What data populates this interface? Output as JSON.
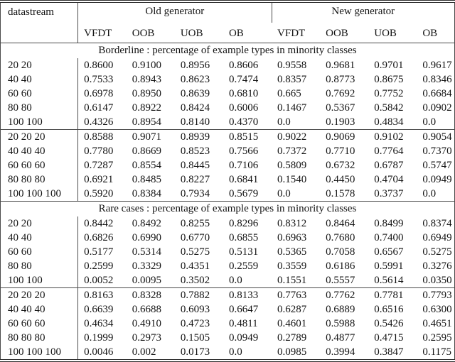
{
  "table": {
    "header": {
      "datastream": "datastream",
      "old_generator": "Old generator",
      "new_generator": "New generator",
      "sub_headers": [
        "VFDT",
        "OOB",
        "UOB",
        "OB",
        "VFDT",
        "OOB",
        "UOB",
        "OB"
      ]
    },
    "sections": [
      {
        "title": "Borderline : percentage of example types in minority classes",
        "blocks": [
          {
            "rows": [
              {
                "datastream": "20 20",
                "values": [
                  "0.8600",
                  "0.9100",
                  "0.8956",
                  "0.8606",
                  "0.9558",
                  "0.9681",
                  "0.9701",
                  "0.9617"
                ]
              },
              {
                "datastream": "40 40",
                "values": [
                  "0.7533",
                  "0.8943",
                  "0.8623",
                  "0.7474",
                  "0.8357",
                  "0.8773",
                  "0.8675",
                  "0.8346"
                ]
              },
              {
                "datastream": "60 60",
                "values": [
                  "0.6978",
                  "0.8950",
                  "0.8639",
                  "0.6810",
                  "0.665",
                  "0.7692",
                  "0.7752",
                  "0.6684"
                ]
              },
              {
                "datastream": "80 80",
                "values": [
                  "0.6147",
                  "0.8922",
                  "0.8424",
                  "0.6006",
                  "0.1467",
                  "0.5367",
                  "0.5842",
                  "0.0902"
                ]
              },
              {
                "datastream": "100 100",
                "values": [
                  "0.4326",
                  "0.8954",
                  "0.8140",
                  "0.4370",
                  "0.0",
                  "0.1903",
                  "0.4834",
                  "0.0"
                ]
              }
            ]
          },
          {
            "rows": [
              {
                "datastream": "20 20 20",
                "values": [
                  "0.8588",
                  "0.9071",
                  "0.8939",
                  "0.8515",
                  "0.9022",
                  "0.9069",
                  "0.9102",
                  "0.9054"
                ]
              },
              {
                "datastream": "40 40 40",
                "values": [
                  "0.7780",
                  "0.8669",
                  "0.8523",
                  "0.7566",
                  "0.7372",
                  "0.7710",
                  "0.7764",
                  "0.7370"
                ]
              },
              {
                "datastream": "60 60 60",
                "values": [
                  "0.7287",
                  "0.8554",
                  "0.8445",
                  "0.7106",
                  "0.5809",
                  "0.6732",
                  "0.6787",
                  "0.5747"
                ]
              },
              {
                "datastream": "80 80 80",
                "values": [
                  "0.6921",
                  "0.8485",
                  "0.8227",
                  "0.6841",
                  "0.1540",
                  "0.4450",
                  "0.4704",
                  "0.0949"
                ]
              },
              {
                "datastream": "100 100 100",
                "values": [
                  "0.5920",
                  "0.8384",
                  "0.7934",
                  "0.5679",
                  "0.0",
                  "0.1578",
                  "0.3737",
                  "0.0"
                ]
              }
            ]
          }
        ]
      },
      {
        "title": "Rare cases : percentage of example types in minority classes",
        "blocks": [
          {
            "rows": [
              {
                "datastream": "20 20",
                "values": [
                  "0.8442",
                  "0.8492",
                  "0.8255",
                  "0.8296",
                  "0.8312",
                  "0.8464",
                  "0.8499",
                  "0.8374"
                ]
              },
              {
                "datastream": "40 40",
                "values": [
                  "0.6826",
                  "0.6990",
                  "0.6770",
                  "0.6855",
                  "0.6963",
                  "0.7680",
                  "0.7400",
                  "0.6949"
                ]
              },
              {
                "datastream": "60 60",
                "values": [
                  "0.5177",
                  "0.5314",
                  "0.5275",
                  "0.5131",
                  "0.5365",
                  "0.7058",
                  "0.6567",
                  "0.5275"
                ]
              },
              {
                "datastream": "80 80",
                "values": [
                  "0.2599",
                  "0.3329",
                  "0.4351",
                  "0.2559",
                  "0.3559",
                  "0.6186",
                  "0.5991",
                  "0.3276"
                ]
              },
              {
                "datastream": "100 100",
                "values": [
                  "0.0052",
                  "0.0095",
                  "0.3502",
                  "0.0",
                  "0.1551",
                  "0.5557",
                  "0.5614",
                  "0.0350"
                ]
              }
            ]
          },
          {
            "rows": [
              {
                "datastream": "20 20 20",
                "values": [
                  "0.8163",
                  "0.8328",
                  "0.7882",
                  "0.8133",
                  "0.7763",
                  "0.7762",
                  "0.7781",
                  "0.7793"
                ]
              },
              {
                "datastream": "40 40 40",
                "values": [
                  "0.6639",
                  "0.6688",
                  "0.6093",
                  "0.6647",
                  "0.6287",
                  "0.6889",
                  "0.6516",
                  "0.6300"
                ]
              },
              {
                "datastream": "60 60 60",
                "values": [
                  "0.4634",
                  "0.4910",
                  "0.4723",
                  "0.4811",
                  "0.4601",
                  "0.5988",
                  "0.5426",
                  "0.4651"
                ]
              },
              {
                "datastream": "80 80 80",
                "values": [
                  "0.1999",
                  "0.2973",
                  "0.1505",
                  "0.0949",
                  "0.2789",
                  "0.4877",
                  "0.4715",
                  "0.2595"
                ]
              },
              {
                "datastream": "100 100 100",
                "values": [
                  "0.0046",
                  "0.002",
                  "0.0173",
                  "0.0",
                  "0.0985",
                  "0.3994",
                  "0.3847",
                  "0.1175"
                ]
              }
            ]
          }
        ]
      }
    ],
    "rule_color": "#4a4a4a"
  }
}
